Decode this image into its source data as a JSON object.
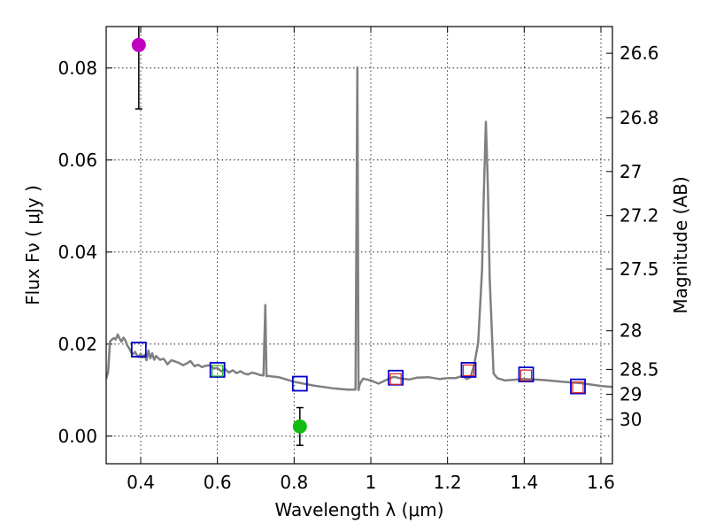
{
  "chart_data": {
    "type": "line",
    "xlabel": "Wavelength  λ (μm)",
    "ylabel": "Flux  Fν  ( μJy )",
    "y2label": "Magnitude (AB)",
    "xlim": [
      0.31,
      1.63
    ],
    "ylim": [
      -0.006,
      0.089
    ],
    "grid": true,
    "x_ticks": [
      0.4,
      0.6,
      0.8,
      1.0,
      1.2,
      1.4,
      1.6
    ],
    "x_tick_labels": [
      "0.4",
      "0.6",
      "0.8",
      "1",
      "1.2",
      "1.4",
      "1.6"
    ],
    "y_ticks": [
      0.0,
      0.02,
      0.04,
      0.06,
      0.08
    ],
    "y_tick_labels": [
      "0.00",
      "0.02",
      "0.04",
      "0.06",
      "0.08"
    ],
    "magnitude_ticks": [
      {
        "label": "26.6",
        "flux": 0.0832
      },
      {
        "label": "26.8",
        "flux": 0.0692
      },
      {
        "label": "27",
        "flux": 0.0575
      },
      {
        "label": "27.2",
        "flux": 0.0479
      },
      {
        "label": "27.5",
        "flux": 0.0363
      },
      {
        "label": "28",
        "flux": 0.0229
      },
      {
        "label": "28.5",
        "flux": 0.0145
      },
      {
        "label": "29",
        "flux": 0.0091
      },
      {
        "label": "30",
        "flux": 0.0036
      }
    ],
    "series": [
      {
        "kind": "spectrum",
        "color": "#808080",
        "x": [
          0.31,
          0.315,
          0.32,
          0.325,
          0.33,
          0.335,
          0.34,
          0.345,
          0.35,
          0.355,
          0.36,
          0.365,
          0.37,
          0.375,
          0.38,
          0.385,
          0.39,
          0.395,
          0.4,
          0.405,
          0.41,
          0.415,
          0.42,
          0.425,
          0.43,
          0.435,
          0.44,
          0.45,
          0.46,
          0.47,
          0.48,
          0.49,
          0.5,
          0.51,
          0.52,
          0.53,
          0.54,
          0.55,
          0.56,
          0.57,
          0.58,
          0.59,
          0.6,
          0.61,
          0.62,
          0.63,
          0.64,
          0.65,
          0.66,
          0.67,
          0.68,
          0.69,
          0.7,
          0.71,
          0.72,
          0.725,
          0.728,
          0.731,
          0.74,
          0.76,
          0.8,
          0.85,
          0.9,
          0.94,
          0.96,
          0.965,
          0.968,
          0.971,
          0.974,
          0.98,
          1.0,
          1.02,
          1.04,
          1.06,
          1.08,
          1.1,
          1.12,
          1.15,
          1.18,
          1.2,
          1.22,
          1.24,
          1.25,
          1.26,
          1.27,
          1.28,
          1.29,
          1.295,
          1.3,
          1.305,
          1.31,
          1.32,
          1.33,
          1.35,
          1.4,
          1.45,
          1.5,
          1.55,
          1.6,
          1.63
        ],
        "y": [
          0.0125,
          0.014,
          0.0205,
          0.021,
          0.0213,
          0.021,
          0.0221,
          0.0212,
          0.0205,
          0.0214,
          0.0208,
          0.0197,
          0.0191,
          0.0182,
          0.0178,
          0.0183,
          0.0176,
          0.0172,
          0.0179,
          0.0171,
          0.0177,
          0.0165,
          0.0186,
          0.0169,
          0.018,
          0.0166,
          0.0174,
          0.0166,
          0.0168,
          0.0156,
          0.0165,
          0.0162,
          0.0159,
          0.0154,
          0.0158,
          0.0163,
          0.0152,
          0.0155,
          0.015,
          0.0153,
          0.0154,
          0.0147,
          0.0148,
          0.0141,
          0.0146,
          0.0138,
          0.0143,
          0.0137,
          0.0141,
          0.0136,
          0.0134,
          0.0138,
          0.0136,
          0.0133,
          0.0132,
          0.0285,
          0.013,
          0.0131,
          0.013,
          0.0128,
          0.0118,
          0.011,
          0.0104,
          0.0101,
          0.0101,
          0.0801,
          0.01,
          0.0112,
          0.0117,
          0.0125,
          0.0121,
          0.0114,
          0.0122,
          0.0129,
          0.0125,
          0.0123,
          0.0127,
          0.0128,
          0.0124,
          0.0126,
          0.0126,
          0.0131,
          0.0124,
          0.0128,
          0.0157,
          0.0203,
          0.0361,
          0.0535,
          0.0683,
          0.0548,
          0.0344,
          0.0136,
          0.0126,
          0.0121,
          0.0124,
          0.0122,
          0.0118,
          0.0115,
          0.0109,
          0.0107
        ]
      },
      {
        "kind": "open-squares",
        "color": "#0000cc",
        "x": [
          0.395,
          0.6,
          0.815,
          1.065,
          1.255,
          1.405,
          1.54
        ],
        "y": [
          0.0188,
          0.0144,
          0.0114,
          0.0127,
          0.0144,
          0.0134,
          0.0108
        ]
      },
      {
        "kind": "open-squares-small",
        "color": "#dd2222",
        "x": [
          1.065,
          1.255,
          1.405,
          1.54
        ],
        "y": [
          0.0124,
          0.0143,
          0.0132,
          0.0106
        ]
      },
      {
        "kind": "open-squares-small",
        "color": "#22aa22",
        "x": [
          0.6
        ],
        "y": [
          0.0142
        ]
      },
      {
        "kind": "points-with-errors",
        "points": [
          {
            "x": 0.395,
            "y": 0.085,
            "ylo": 0.0711,
            "yhi": 0.0895,
            "color": "#c000c0"
          },
          {
            "x": 0.815,
            "y": 0.0021,
            "ylo": -0.002,
            "yhi": 0.0062,
            "color": "#11bb11"
          }
        ]
      }
    ]
  }
}
